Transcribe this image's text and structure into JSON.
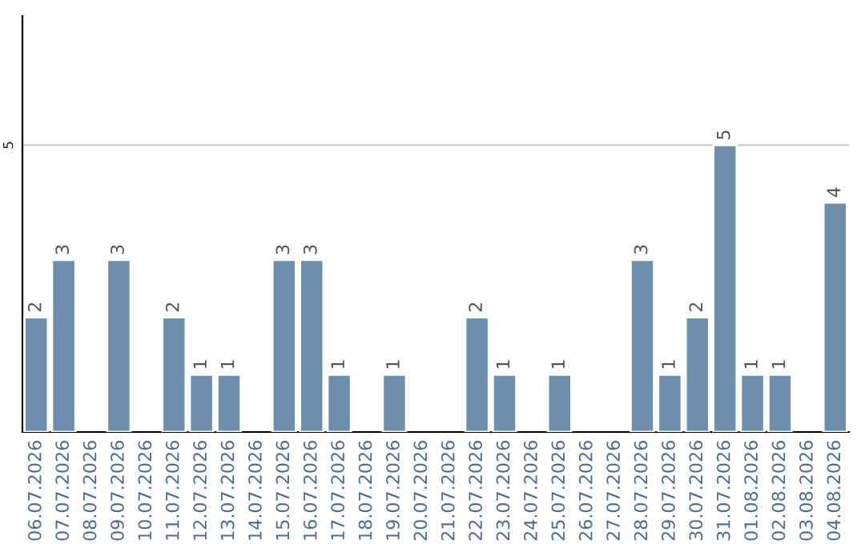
{
  "chart_data": {
    "type": "bar",
    "categories": [
      "06.07.2026",
      "07.07.2026",
      "08.07.2026",
      "09.07.2026",
      "10.07.2026",
      "11.07.2026",
      "12.07.2026",
      "13.07.2026",
      "14.07.2026",
      "15.07.2026",
      "16.07.2026",
      "17.07.2026",
      "18.07.2026",
      "19.07.2026",
      "20.07.2026",
      "21.07.2026",
      "22.07.2026",
      "23.07.2026",
      "24.07.2026",
      "25.07.2026",
      "26.07.2026",
      "27.07.2026",
      "28.07.2026",
      "29.07.2026",
      "30.07.2026",
      "31.07.2026",
      "01.08.2026",
      "02.08.2026",
      "03.08.2026",
      "04.08.2026"
    ],
    "values": [
      2,
      3,
      null,
      3,
      null,
      2,
      1,
      1,
      null,
      3,
      3,
      1,
      null,
      1,
      null,
      null,
      2,
      1,
      null,
      1,
      null,
      null,
      3,
      1,
      2,
      5,
      1,
      1,
      null,
      4
    ],
    "color": "#6d8fad",
    "ylim": [
      0,
      7.25
    ],
    "yticks": [
      5
    ],
    "grid": "y",
    "data_labels": true
  }
}
